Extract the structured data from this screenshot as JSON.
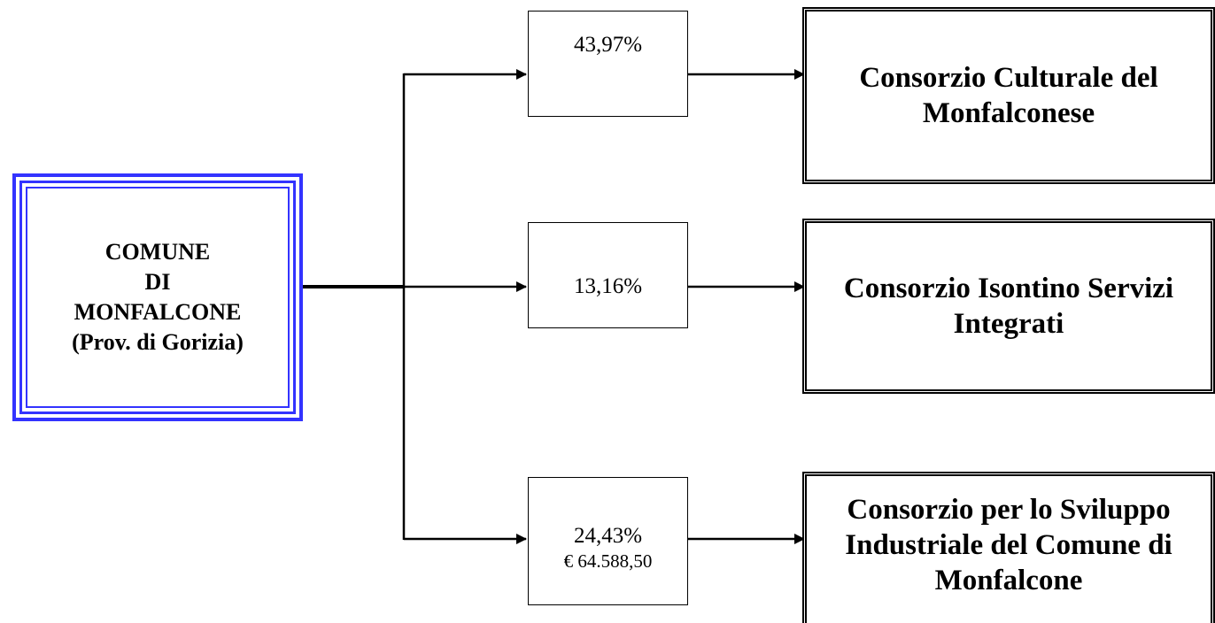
{
  "root": {
    "lines": [
      "COMUNE",
      "DI",
      "MONFALCONE",
      "(Prov. di Gorizia)"
    ]
  },
  "shares": [
    {
      "percentage": "43,97%",
      "amount": "",
      "entity": "Consorzio Culturale del Monfalconese"
    },
    {
      "percentage": "13,16%",
      "amount": "",
      "entity": "Consorzio Isontino Servizi Integrati"
    },
    {
      "percentage": "24,43%",
      "amount": "€ 64.588,50",
      "entity": "Consorzio per lo Sviluppo Industriale del Comune di Monfalcone"
    }
  ],
  "colors": {
    "root_border": "#3333ff",
    "line": "#000000"
  }
}
